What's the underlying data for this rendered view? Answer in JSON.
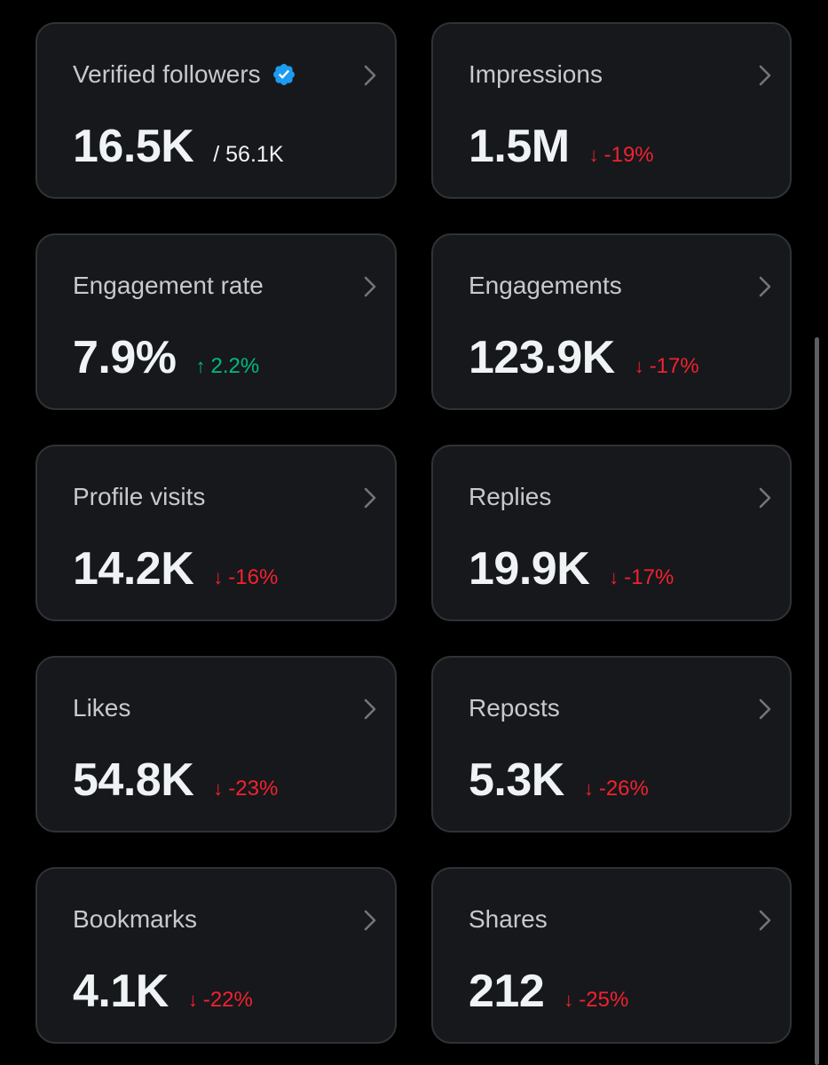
{
  "colors": {
    "background": "#000000",
    "card_background": "#16181c",
    "card_border": "#2f3336",
    "label_text": "#c7c9cc",
    "value_text": "#eff3f4",
    "negative": "#f4212e",
    "positive": "#00ba7c",
    "verified_badge": "#1d9bf0"
  },
  "metrics": [
    {
      "label": "Verified followers",
      "value": "16.5K",
      "total": "/ 56.1K",
      "verified_icon": "verified-badge-icon"
    },
    {
      "label": "Impressions",
      "value": "1.5M",
      "change": "-19%",
      "direction": "down"
    },
    {
      "label": "Engagement rate",
      "value": "7.9%",
      "change": "2.2%",
      "direction": "up"
    },
    {
      "label": "Engagements",
      "value": "123.9K",
      "change": "-17%",
      "direction": "down"
    },
    {
      "label": "Profile visits",
      "value": "14.2K",
      "change": "-16%",
      "direction": "down"
    },
    {
      "label": "Replies",
      "value": "19.9K",
      "change": "-17%",
      "direction": "down"
    },
    {
      "label": "Likes",
      "value": "54.8K",
      "change": "-23%",
      "direction": "down"
    },
    {
      "label": "Reposts",
      "value": "5.3K",
      "change": "-26%",
      "direction": "down"
    },
    {
      "label": "Bookmarks",
      "value": "4.1K",
      "change": "-22%",
      "direction": "down"
    },
    {
      "label": "Shares",
      "value": "212",
      "change": "-25%",
      "direction": "down"
    }
  ]
}
